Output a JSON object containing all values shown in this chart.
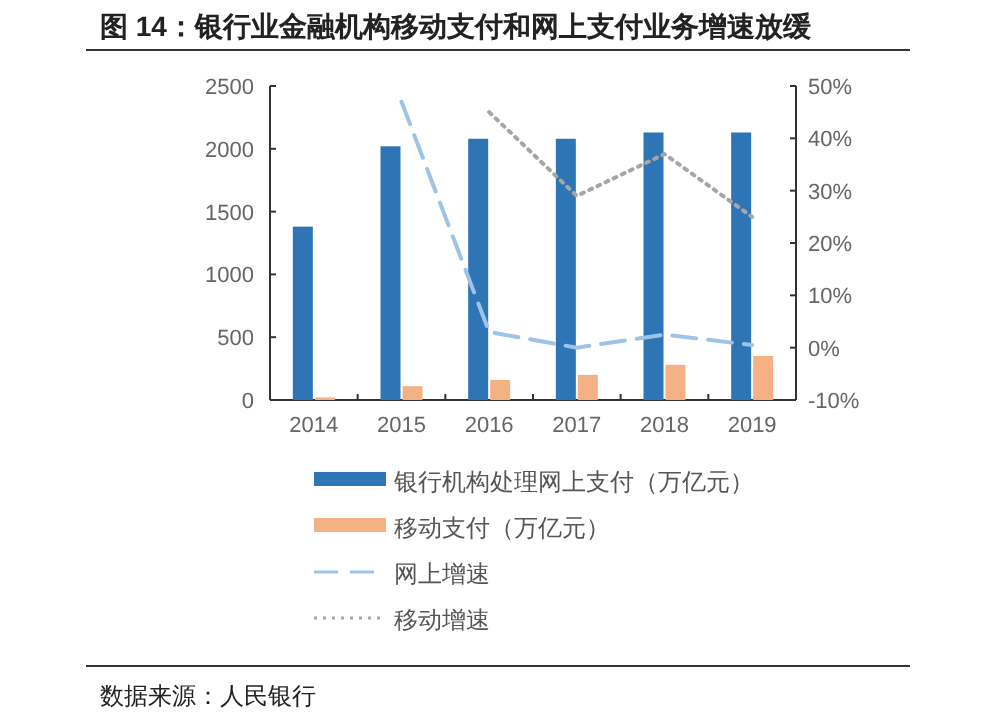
{
  "chart_data": {
    "type": "bar",
    "title": "图 14：银行业金融机构移动支付和网上支付业务增速放缓",
    "categories": [
      "2014",
      "2015",
      "2016",
      "2017",
      "2018",
      "2019"
    ],
    "series": [
      {
        "name": "银行机构处理网上支付（万亿元）",
        "color": "#2e75b6",
        "values": [
          1380,
          2020,
          2080,
          2080,
          2130,
          2130
        ]
      },
      {
        "name": "移动支付（万亿元）",
        "color": "#f4b183",
        "values": [
          20,
          110,
          160,
          200,
          280,
          350
        ]
      },
      {
        "name": "网上增速",
        "type": "line",
        "axis": "y2",
        "line_style": "dashed",
        "color": "#9dc3e6",
        "values": [
          null,
          47,
          3,
          0,
          2.5,
          0.5
        ]
      },
      {
        "name": "移动增速",
        "type": "line",
        "axis": "y2",
        "line_style": "dotted",
        "color": "#a6a6a6",
        "values": [
          null,
          null,
          45,
          29,
          37,
          25
        ]
      }
    ],
    "ylim": [
      0,
      2500
    ],
    "yticks": [
      0,
      500,
      1000,
      1500,
      2000,
      2500
    ],
    "y2lim": [
      -10,
      50
    ],
    "y2ticks": [
      {
        "value": -10,
        "label": "-10%"
      },
      {
        "value": 0,
        "label": "0%"
      },
      {
        "value": 10,
        "label": "10%"
      },
      {
        "value": 20,
        "label": "20%"
      },
      {
        "value": 30,
        "label": "30%"
      },
      {
        "value": 40,
        "label": "40%"
      },
      {
        "value": 50,
        "label": "50%"
      }
    ],
    "legend": "bottom",
    "grid": false,
    "annotations": [
      "数据来源：人民银行"
    ]
  }
}
